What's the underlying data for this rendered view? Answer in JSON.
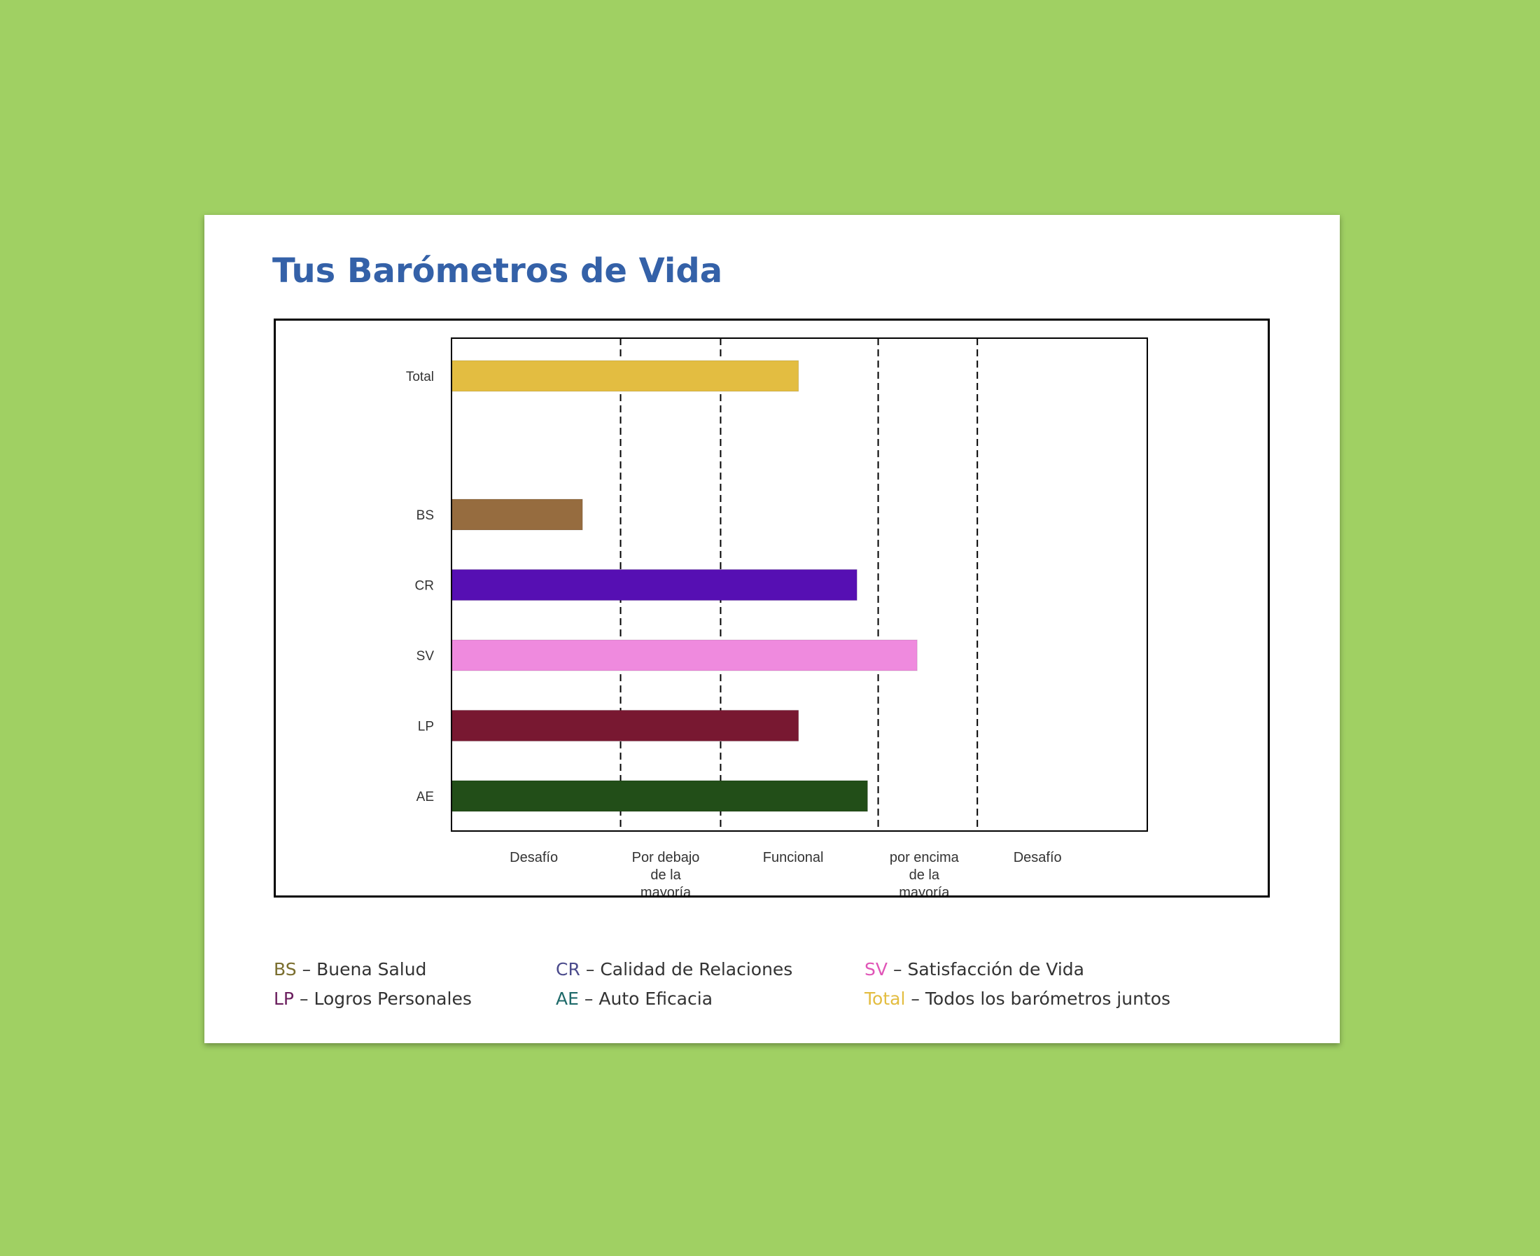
{
  "title": "Tus Barómetros de Vida",
  "chart_data": {
    "type": "bar",
    "orientation": "horizontal",
    "categories": [
      "Total",
      "BS",
      "CR",
      "SV",
      "LP",
      "AE"
    ],
    "values": [
      1.96,
      0.74,
      2.29,
      2.63,
      1.96,
      2.35
    ],
    "colors": [
      "#e3bd41",
      "#966c3f",
      "#560fb3",
      "#ef8ade",
      "#781831",
      "#224e18"
    ],
    "xlim": [
      0,
      3.93
    ],
    "zone_boundaries": [
      0.955,
      1.52,
      2.41,
      2.97
    ],
    "zone_labels": [
      {
        "lines": [
          "Desafío"
        ],
        "center": 0.465
      },
      {
        "lines": [
          "Por debajo",
          "de la",
          "mayoría"
        ],
        "center": 1.21
      },
      {
        "lines": [
          "Funcional"
        ],
        "center": 1.93
      },
      {
        "lines": [
          "por encima",
          "de la",
          "mayoría"
        ],
        "center": 2.67
      },
      {
        "lines": [
          "Desafío"
        ],
        "center": 3.31
      }
    ],
    "gap_after_category": "Total",
    "grid_style": "dashed"
  },
  "legend": [
    {
      "abbr": "BS",
      "label": "Buena Salud",
      "color": "#7a6e2e"
    },
    {
      "abbr": "CR",
      "label": "Calidad de Relaciones",
      "color": "#4b4b8c"
    },
    {
      "abbr": "SV",
      "label": "Satisfacción de Vida",
      "color": "#e055b7"
    },
    {
      "abbr": "LP",
      "label": "Logros Personales",
      "color": "#6b1f5e"
    },
    {
      "abbr": "AE",
      "label": "Auto Eficacia",
      "color": "#1f6a6a"
    },
    {
      "abbr": "Total",
      "label": "Todos los barómetros juntos",
      "color": "#e3bd41"
    }
  ],
  "legend_separator": "–"
}
